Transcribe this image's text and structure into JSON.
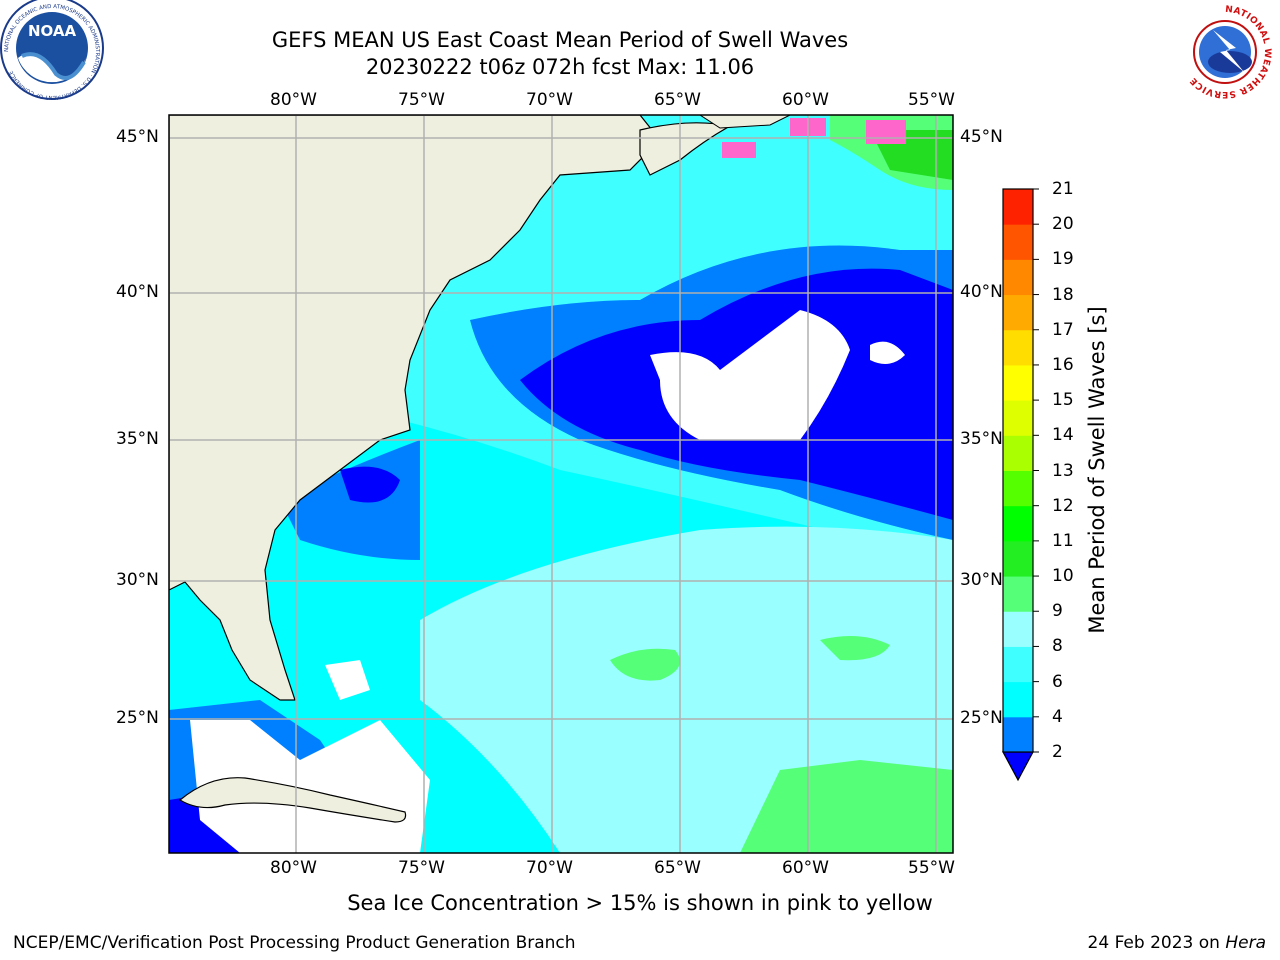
{
  "title": {
    "line1": "GEFS MEAN US East Coast Mean Period of Swell Waves",
    "line2": "20230222 t06z 072h fcst   Max: 11.06"
  },
  "map": {
    "lon_labels": [
      "80°W",
      "75°W",
      "70°W",
      "65°W",
      "60°W",
      "55°W"
    ],
    "lat_labels": [
      "45°N",
      "40°N",
      "35°N",
      "30°N",
      "25°N"
    ],
    "land_color": "#efefdf",
    "grid_color": "#b0b0b0"
  },
  "colorbar": {
    "label": "Mean Period of Swell Waves [s]",
    "ticks": [
      "2",
      "4",
      "6",
      "8",
      "9",
      "10",
      "11",
      "12",
      "13",
      "14",
      "15",
      "16",
      "17",
      "18",
      "19",
      "20",
      "21"
    ],
    "colors": [
      "#0000ff",
      "#0080ff",
      "#00ffff",
      "#40ffff",
      "#99ffff",
      "#55ff77",
      "#22ee22",
      "#00ff00",
      "#55ff00",
      "#aaff00",
      "#ddff00",
      "#ffff00",
      "#ffdd00",
      "#ffaa00",
      "#ff8800",
      "#ff5500",
      "#ff2200",
      "#ff0000"
    ]
  },
  "note": "Sea Ice Concentration > 15% is shown in pink to yellow",
  "credit": "NCEP/EMC/Verification Post Processing Product Generation Branch",
  "date": {
    "text": "24 Feb 2023 on ",
    "machine": "Hera"
  },
  "logos": {
    "noaa_text": "NOAA",
    "noaa_ring": "NATIONAL OCEANIC AND ATMOSPHERIC ADMINISTRATION · U.S. DEPARTMENT OF COMMERCE",
    "nws_ring": "NATIONAL WEATHER SERVICE"
  }
}
